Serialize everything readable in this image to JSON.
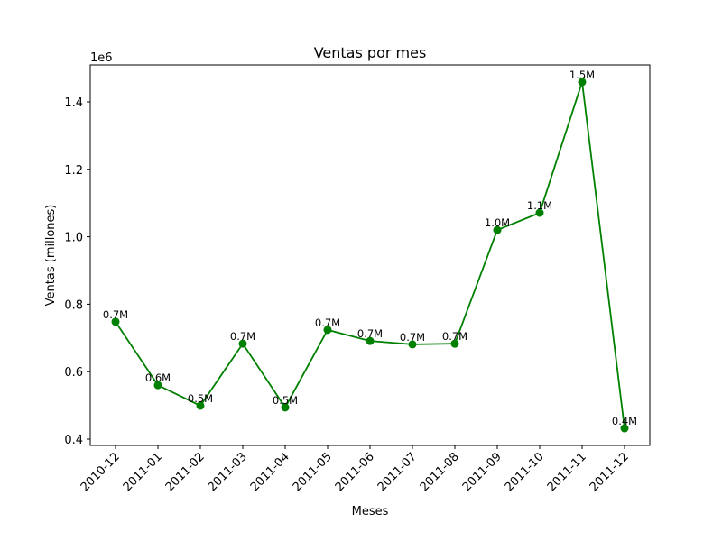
{
  "chart_data": {
    "type": "line",
    "title": "Ventas por mes",
    "xlabel": "Meses",
    "ylabel": "Ventas (millones)",
    "y_offset_label": "1e6",
    "categories": [
      "2010-12",
      "2011-01",
      "2011-02",
      "2011-03",
      "2011-04",
      "2011-05",
      "2011-06",
      "2011-07",
      "2011-08",
      "2011-09",
      "2011-10",
      "2011-11",
      "2011-12"
    ],
    "series": [
      {
        "name": "Ventas",
        "color": "#008000",
        "marker": "circle",
        "values": [
          748000,
          560000,
          499000,
          683000,
          494000,
          724000,
          691000,
          681000,
          683000,
          1020000,
          1071000,
          1459000,
          432000
        ],
        "labels": [
          "0.7M",
          "0.6M",
          "0.5M",
          "0.7M",
          "0.5M",
          "0.7M",
          "0.7M",
          "0.7M",
          "0.7M",
          "1.0M",
          "1.1M",
          "1.5M",
          "0.4M"
        ]
      }
    ],
    "yticks": [
      0.4,
      0.6,
      0.8,
      1.0,
      1.2,
      1.4
    ],
    "ytick_labels": [
      "0.4",
      "0.6",
      "0.8",
      "1.0",
      "1.2",
      "1.4"
    ],
    "ylim": [
      380000,
      1510000
    ],
    "grid": false,
    "legend": null,
    "xtick_rotation": 45
  }
}
